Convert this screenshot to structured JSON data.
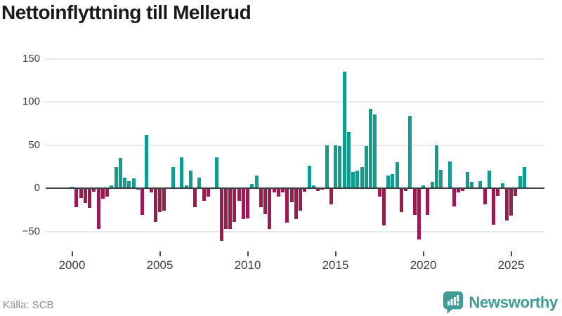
{
  "title": "Nettoinflyttning till Mellerud",
  "source": "Källa: SCB",
  "brand": {
    "name": "Newsworthy",
    "color": "#3e9c95"
  },
  "colors": {
    "positive_bar": "#0f9d90",
    "negative_bar": "#9c1a50",
    "gridline": "#e9e9e9",
    "zero_line": "#3d3d3d",
    "axis_text": "#404040",
    "title_text": "#1a1a1a",
    "source_text": "#8f8f8f"
  },
  "chart_data": {
    "type": "bar",
    "title": "Nettoinflyttning till Mellerud",
    "x_unit": "quarter",
    "start_period": "2000 Q1",
    "end_period": "2025 Q4",
    "grid": true,
    "ylim": [
      -70,
      160
    ],
    "y_ticks": [
      150,
      100,
      50,
      0,
      -50
    ],
    "y_tick_labels": [
      "150",
      "100",
      "50",
      "0",
      "−50"
    ],
    "x_tick_years": [
      2000,
      2005,
      2010,
      2015,
      2020,
      2025
    ],
    "x_tick_labels": [
      "2000",
      "2005",
      "2010",
      "2015",
      "2020",
      "2025"
    ],
    "values": [
      2,
      -22,
      -11,
      -17,
      -23,
      -4,
      -47,
      -12,
      -10,
      3,
      24,
      35,
      12,
      8,
      11,
      -2,
      -31,
      62,
      -5,
      -39,
      -28,
      -26,
      0,
      24,
      0,
      36,
      3,
      20,
      -22,
      12,
      -15,
      -10,
      0,
      36,
      -61,
      -47,
      -47,
      -39,
      -15,
      -36,
      -35,
      5,
      15,
      -22,
      -30,
      -47,
      -5,
      -10,
      -5,
      -40,
      -16,
      -36,
      -26,
      -4,
      26,
      3,
      -3,
      -2,
      50,
      -19,
      50,
      49,
      135,
      65,
      19,
      20,
      24,
      49,
      92,
      85,
      -10,
      -43,
      15,
      16,
      30,
      -28,
      -3,
      84,
      -31,
      -59,
      3,
      -31,
      7,
      50,
      21,
      0,
      31,
      -21,
      -5,
      -3,
      19,
      7,
      0,
      8,
      -19,
      20,
      -42,
      -9,
      6,
      -37,
      -32,
      -9,
      14,
      24
    ]
  }
}
